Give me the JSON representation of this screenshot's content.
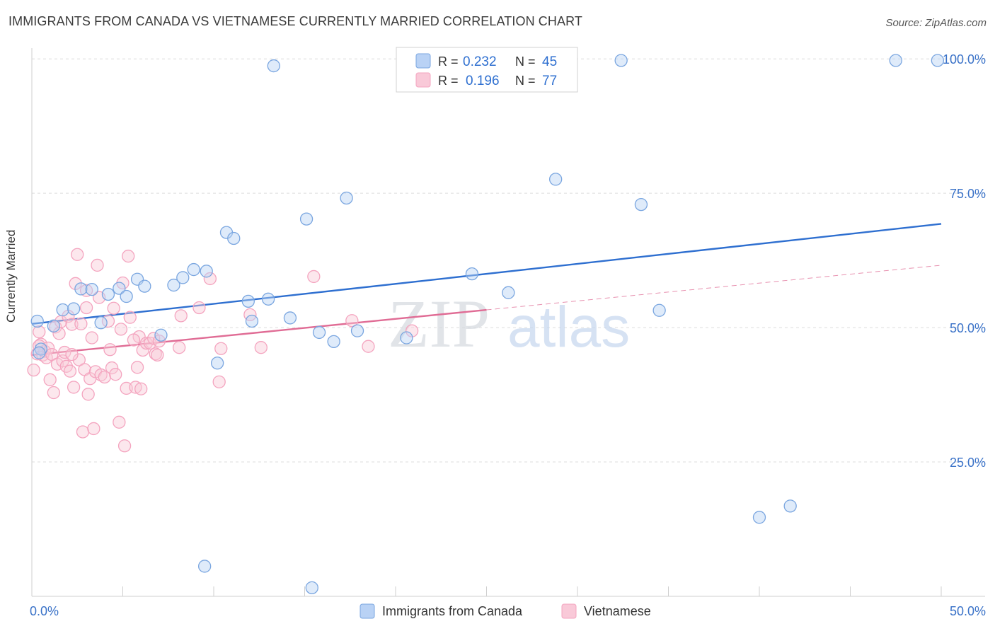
{
  "title": "IMMIGRANTS FROM CANADA VS VIETNAMESE CURRENTLY MARRIED CORRELATION CHART",
  "source": "Source: ZipAtlas.com",
  "watermark": {
    "zip": "ZIP",
    "atlas": "atlas"
  },
  "chart_data": {
    "type": "scatter",
    "title": "IMMIGRANTS FROM CANADA VS VIETNAMESE CURRENTLY MARRIED CORRELATION CHART",
    "xlabel": "",
    "ylabel": "Currently Married",
    "xlim": [
      0,
      50
    ],
    "ylim": [
      0,
      102
    ],
    "x_tick_labels": [
      "0.0%",
      "50.0%"
    ],
    "y_ticks": [
      25,
      50,
      75,
      100
    ],
    "y_tick_labels": [
      "25.0%",
      "50.0%",
      "75.0%",
      "100.0%"
    ],
    "grid": true,
    "legend_position": "top-center",
    "series": [
      {
        "name": "Immigrants from Canada",
        "color": "#7aa6e0",
        "line_color": "#2e6fd0",
        "R": "0.232",
        "N": "45",
        "trend": {
          "x": [
            0,
            50
          ],
          "y": [
            50.7,
            69.3
          ]
        },
        "points": [
          [
            0.3,
            51.2
          ],
          [
            0.5,
            46.0
          ],
          [
            1.2,
            50.3
          ],
          [
            1.7,
            53.3
          ],
          [
            2.3,
            53.5
          ],
          [
            2.7,
            57.2
          ],
          [
            3.3,
            57.1
          ],
          [
            3.8,
            50.9
          ],
          [
            4.2,
            56.2
          ],
          [
            4.8,
            57.3
          ],
          [
            5.2,
            55.8
          ],
          [
            5.8,
            59.0
          ],
          [
            6.2,
            57.7
          ],
          [
            7.1,
            48.6
          ],
          [
            7.8,
            57.9
          ],
          [
            8.3,
            59.3
          ],
          [
            8.9,
            60.8
          ],
          [
            9.5,
            5.6
          ],
          [
            9.6,
            60.5
          ],
          [
            10.2,
            43.4
          ],
          [
            10.7,
            67.7
          ],
          [
            11.1,
            66.6
          ],
          [
            11.9,
            54.9
          ],
          [
            12.1,
            51.2
          ],
          [
            13.0,
            55.3
          ],
          [
            13.3,
            98.7
          ],
          [
            14.2,
            51.8
          ],
          [
            15.1,
            70.2
          ],
          [
            15.4,
            1.6
          ],
          [
            15.8,
            49.1
          ],
          [
            16.6,
            47.4
          ],
          [
            17.3,
            74.1
          ],
          [
            17.9,
            49.4
          ],
          [
            20.6,
            48.1
          ],
          [
            24.2,
            60.0
          ],
          [
            26.2,
            56.5
          ],
          [
            28.8,
            77.6
          ],
          [
            32.4,
            99.7
          ],
          [
            33.5,
            72.9
          ],
          [
            34.5,
            53.2
          ],
          [
            40.0,
            14.7
          ],
          [
            41.7,
            16.8
          ],
          [
            47.5,
            99.7
          ],
          [
            49.8,
            99.7
          ],
          [
            0.4,
            45.3
          ]
        ]
      },
      {
        "name": "Vietnamese",
        "color": "#f4a4bf",
        "line_color": "#e06c95",
        "R": "0.196",
        "N": "77",
        "trend": {
          "x": [
            0,
            25
          ],
          "y": [
            44.9,
            53.3
          ]
        },
        "trend_extension": {
          "x": [
            25,
            50
          ],
          "y": [
            53.3,
            61.6
          ]
        },
        "points": [
          [
            0.1,
            42.1
          ],
          [
            0.3,
            45.1
          ],
          [
            0.4,
            49.2
          ],
          [
            0.5,
            46.9
          ],
          [
            0.6,
            44.9
          ],
          [
            0.7,
            45.6
          ],
          [
            0.8,
            44.4
          ],
          [
            0.9,
            46.2
          ],
          [
            1.0,
            40.3
          ],
          [
            1.1,
            45.0
          ],
          [
            1.2,
            37.9
          ],
          [
            1.3,
            50.1
          ],
          [
            1.4,
            43.2
          ],
          [
            1.5,
            48.9
          ],
          [
            1.6,
            51.1
          ],
          [
            1.7,
            43.8
          ],
          [
            1.8,
            45.4
          ],
          [
            1.9,
            42.8
          ],
          [
            2.0,
            52.1
          ],
          [
            2.1,
            41.9
          ],
          [
            2.2,
            50.6
          ],
          [
            2.3,
            38.9
          ],
          [
            2.4,
            58.2
          ],
          [
            2.5,
            63.6
          ],
          [
            2.6,
            44.0
          ],
          [
            2.7,
            50.7
          ],
          [
            2.8,
            30.6
          ],
          [
            2.9,
            42.2
          ],
          [
            3.0,
            53.7
          ],
          [
            3.1,
            37.6
          ],
          [
            3.2,
            40.5
          ],
          [
            3.3,
            48.1
          ],
          [
            3.4,
            31.2
          ],
          [
            3.5,
            41.8
          ],
          [
            3.6,
            61.6
          ],
          [
            3.7,
            55.6
          ],
          [
            3.8,
            41.2
          ],
          [
            4.0,
            40.8
          ],
          [
            4.2,
            51.2
          ],
          [
            4.3,
            45.9
          ],
          [
            4.4,
            42.5
          ],
          [
            4.5,
            53.6
          ],
          [
            4.6,
            41.3
          ],
          [
            4.8,
            32.4
          ],
          [
            4.9,
            49.7
          ],
          [
            5.0,
            58.3
          ],
          [
            5.1,
            28.0
          ],
          [
            5.2,
            38.7
          ],
          [
            5.3,
            63.3
          ],
          [
            5.4,
            51.9
          ],
          [
            5.7,
            38.9
          ],
          [
            5.8,
            42.6
          ],
          [
            5.9,
            48.3
          ],
          [
            6.0,
            38.6
          ],
          [
            6.1,
            45.8
          ],
          [
            6.3,
            47.1
          ],
          [
            6.5,
            47.1
          ],
          [
            6.7,
            48.0
          ],
          [
            6.8,
            45.1
          ],
          [
            6.9,
            44.9
          ],
          [
            7.0,
            47.5
          ],
          [
            8.1,
            46.3
          ],
          [
            8.2,
            52.2
          ],
          [
            9.2,
            53.7
          ],
          [
            9.8,
            59.1
          ],
          [
            10.3,
            39.9
          ],
          [
            10.4,
            46.1
          ],
          [
            12.0,
            52.4
          ],
          [
            12.6,
            46.3
          ],
          [
            15.5,
            59.5
          ],
          [
            17.6,
            51.3
          ],
          [
            18.5,
            46.5
          ],
          [
            20.9,
            49.4
          ],
          [
            2.2,
            45.0
          ],
          [
            0.4,
            46.6
          ],
          [
            3.0,
            56.9
          ],
          [
            5.6,
            47.7
          ]
        ]
      }
    ]
  },
  "legend": {
    "r_label": "R =",
    "n_label": "N ="
  },
  "bottom_legend": {
    "items": [
      "Immigrants from Canada",
      "Vietnamese"
    ]
  }
}
